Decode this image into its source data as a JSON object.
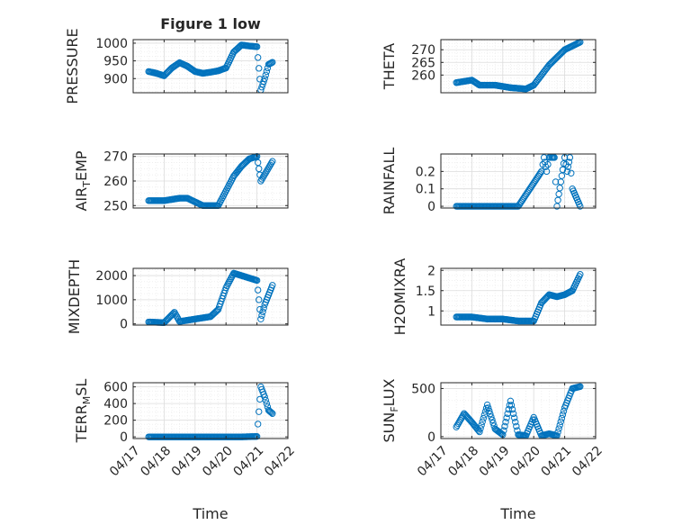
{
  "figure_title": "Figure 1 low",
  "colors": {
    "marker": "#0072BD",
    "axis": "#262626",
    "grid": "#DCDCDC",
    "minor_grid": "#ECECEC"
  },
  "chart_data": [
    {
      "id": "pressure",
      "type": "scatter",
      "marker": "circle",
      "ylabel": "PRESSURE",
      "title": "Figure 1 low",
      "xlim": [
        "04/17",
        "04/22"
      ],
      "ylim": [
        860,
        1010
      ],
      "yticks": [
        900,
        950,
        1000
      ],
      "ytick_labels": [
        "900",
        "950",
        "1000"
      ],
      "xtick_labels": [],
      "xlabel": "",
      "grid": true,
      "x": [
        "04/17 12:00",
        "04/17 18:00",
        "04/18 00:00",
        "04/18 06:00",
        "04/18 12:00",
        "04/18 18:00",
        "04/19 00:00",
        "04/19 06:00",
        "04/19 12:00",
        "04/19 18:00",
        "04/20 00:00",
        "04/20 06:00",
        "04/20 12:00",
        "04/20 18:00",
        "04/21 00:00",
        "04/21 03:00",
        "04/21 06:00",
        "04/21 09:00",
        "04/21 12:00"
      ],
      "y": [
        920,
        915,
        908,
        930,
        945,
        935,
        920,
        915,
        918,
        922,
        930,
        975,
        995,
        992,
        990,
        868,
        900,
        940,
        946
      ]
    },
    {
      "id": "theta",
      "type": "scatter",
      "marker": "circle",
      "ylabel": "THETA",
      "xlim": [
        "04/17",
        "04/22"
      ],
      "ylim": [
        253,
        274
      ],
      "yticks": [
        260,
        265,
        270
      ],
      "ytick_labels": [
        "260",
        "265",
        "270"
      ],
      "xtick_labels": [],
      "xlabel": "",
      "grid": true,
      "x": [
        "04/17 12:00",
        "04/18 00:00",
        "04/18 06:00",
        "04/18 18:00",
        "04/19 06:00",
        "04/19 18:00",
        "04/20 00:00",
        "04/20 12:00",
        "04/21 00:00",
        "04/21 12:00"
      ],
      "y": [
        257,
        258,
        256,
        256,
        255,
        254.5,
        256,
        264,
        270,
        273
      ]
    },
    {
      "id": "air_temp",
      "type": "scatter",
      "marker": "circle",
      "ylabel_main": "AIR",
      "ylabel_sub": "T",
      "ylabel_tail": "EMP",
      "xlim": [
        "04/17",
        "04/22"
      ],
      "ylim": [
        249,
        271
      ],
      "yticks": [
        250,
        260,
        270
      ],
      "ytick_labels": [
        "250",
        "260",
        "270"
      ],
      "xtick_labels": [],
      "xlabel": "",
      "grid": true,
      "x": [
        "04/17 12:00",
        "04/18 00:00",
        "04/18 12:00",
        "04/18 18:00",
        "04/19 06:00",
        "04/19 18:00",
        "04/20 06:00",
        "04/20 12:00",
        "04/20 18:00",
        "04/21 00:00",
        "04/21 03:00",
        "04/21 12:00"
      ],
      "y": [
        252,
        252,
        253,
        253,
        250,
        250,
        262,
        266,
        269,
        270,
        260,
        268
      ]
    },
    {
      "id": "rainfall",
      "type": "scatter",
      "marker": "circle",
      "ylabel": "RAINFALL",
      "xlim": [
        "04/17",
        "04/22"
      ],
      "ylim": [
        -0.01,
        0.3
      ],
      "yticks": [
        0,
        0.1,
        0.2
      ],
      "ytick_labels": [
        "0",
        "0.1",
        "0.2"
      ],
      "xtick_labels": [],
      "xlabel": "",
      "grid": true,
      "x": [
        "04/17 12:00",
        "04/18 12:00",
        "04/19 12:00",
        "04/20 06:00",
        "04/20 08:00",
        "04/20 10:00",
        "04/20 12:00",
        "04/20 14:00",
        "04/20 16:00",
        "04/20 18:00",
        "04/21 00:00",
        "04/21 02:00",
        "04/21 04:00",
        "04/21 06:00",
        "04/21 12:00"
      ],
      "y": [
        0,
        0,
        0,
        0.2,
        0.28,
        0.2,
        0.28,
        0.28,
        0.28,
        0,
        0.28,
        0.2,
        0.28,
        0.1,
        0
      ]
    },
    {
      "id": "mixdepth",
      "type": "scatter",
      "marker": "circle",
      "ylabel": "MIXDEPTH",
      "xlim": [
        "04/17",
        "04/22"
      ],
      "ylim": [
        -50,
        2300
      ],
      "yticks": [
        0,
        1000,
        2000
      ],
      "ytick_labels": [
        "0",
        "1000",
        "2000"
      ],
      "xtick_labels": [],
      "xlabel": "",
      "grid": true,
      "x": [
        "04/17 12:00",
        "04/18 00:00",
        "04/18 08:00",
        "04/18 12:00",
        "04/19 00:00",
        "04/19 12:00",
        "04/19 18:00",
        "04/20 00:00",
        "04/20 06:00",
        "04/20 12:00",
        "04/20 18:00",
        "04/21 00:00",
        "04/21 03:00",
        "04/21 06:00",
        "04/21 12:00"
      ],
      "y": [
        80,
        50,
        480,
        100,
        200,
        300,
        600,
        1500,
        2100,
        2000,
        1900,
        1800,
        200,
        800,
        1600
      ]
    },
    {
      "id": "h2omixra",
      "type": "scatter",
      "marker": "circle",
      "ylabel": "H2OMIXRA",
      "xlim": [
        "04/17",
        "04/22"
      ],
      "ylim": [
        0.65,
        2.05
      ],
      "yticks": [
        1,
        1.5,
        2
      ],
      "ytick_labels": [
        "1",
        "1.5",
        "2"
      ],
      "xtick_labels": [],
      "xlabel": "",
      "grid": true,
      "x": [
        "04/17 12:00",
        "04/18 00:00",
        "04/18 12:00",
        "04/19 00:00",
        "04/19 12:00",
        "04/20 00:00",
        "04/20 06:00",
        "04/20 12:00",
        "04/20 18:00",
        "04/21 00:00",
        "04/21 06:00",
        "04/21 12:00"
      ],
      "y": [
        0.85,
        0.85,
        0.8,
        0.8,
        0.75,
        0.75,
        1.2,
        1.4,
        1.35,
        1.4,
        1.5,
        1.9
      ]
    },
    {
      "id": "terr_msl",
      "type": "scatter",
      "marker": "circle",
      "ylabel_main": "TERR",
      "ylabel_sub": "M",
      "ylabel_tail": "SL",
      "xlim": [
        "04/17",
        "04/22"
      ],
      "ylim": [
        -20,
        650
      ],
      "yticks": [
        0,
        200,
        400,
        600
      ],
      "ytick_labels": [
        "0",
        "200",
        "400",
        "600"
      ],
      "xtick_labels": [
        "04/17",
        "04/18",
        "04/19",
        "04/20",
        "04/21",
        "04/22"
      ],
      "xlabel": "Time",
      "grid": true,
      "x": [
        "04/17 12:00",
        "04/18 12:00",
        "04/19 12:00",
        "04/20 12:00",
        "04/21 00:00",
        "04/21 03:00",
        "04/21 06:00",
        "04/21 09:00",
        "04/21 12:00"
      ],
      "y": [
        0,
        0,
        0,
        0,
        5,
        600,
        480,
        320,
        280
      ]
    },
    {
      "id": "sun_flux",
      "type": "scatter",
      "marker": "circle",
      "ylabel_main": "SUN",
      "ylabel_sub": "F",
      "ylabel_tail": "LUX",
      "xlim": [
        "04/17",
        "04/22"
      ],
      "ylim": [
        -20,
        560
      ],
      "yticks": [
        0,
        500
      ],
      "ytick_labels": [
        "0",
        "500"
      ],
      "xtick_labels": [
        "04/17",
        "04/18",
        "04/19",
        "04/20",
        "04/21",
        "04/22"
      ],
      "xlabel": "Time",
      "grid": true,
      "x": [
        "04/17 12:00",
        "04/17 18:00",
        "04/18 00:00",
        "04/18 06:00",
        "04/18 12:00",
        "04/18 18:00",
        "04/19 00:00",
        "04/19 06:00",
        "04/19 12:00",
        "04/19 18:00",
        "04/20 00:00",
        "04/20 06:00",
        "04/20 12:00",
        "04/20 18:00",
        "04/21 00:00",
        "04/21 06:00",
        "04/21 12:00"
      ],
      "y": [
        100,
        240,
        150,
        50,
        330,
        80,
        20,
        370,
        20,
        10,
        200,
        10,
        30,
        10,
        300,
        500,
        520
      ]
    }
  ]
}
